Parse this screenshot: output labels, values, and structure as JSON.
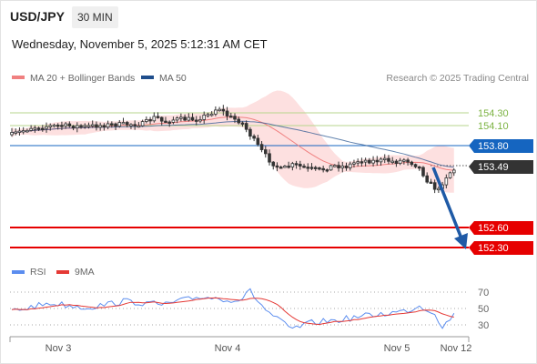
{
  "header": {
    "symbol": "USD/JPY",
    "timeframe": "30 MIN"
  },
  "datetime": "Wednesday, November 5, 2025 5:12:31 AM CET",
  "legend": {
    "ma20": {
      "label": "MA 20 + Bollinger Bands",
      "color": "#f08080"
    },
    "ma50": {
      "label": "MA 50",
      "color": "#1f4e8c"
    }
  },
  "credit": "Research © 2025 Trading Central",
  "price_levels": [
    {
      "label": "154.30",
      "kind": "resistance-green",
      "color": "#7cb342"
    },
    {
      "label": "154.10",
      "kind": "resistance-green",
      "color": "#7cb342"
    },
    {
      "label": "153.80",
      "kind": "pivot",
      "color": "#1565c0"
    },
    {
      "label": "153.49",
      "kind": "current",
      "color": "#333333"
    },
    {
      "label": "152.60",
      "kind": "target",
      "color": "#e60000"
    },
    {
      "label": "152.30",
      "kind": "target",
      "color": "#e60000"
    }
  ],
  "rsi_panel": {
    "legend_rsi": "RSI",
    "legend_9ma": "9MA",
    "rsi_color": "#5b8def",
    "ma_color": "#e53935",
    "levels": [
      "70",
      "50",
      "30"
    ]
  },
  "x_axis": {
    "labels": [
      "Nov 3",
      "Nov 4",
      "Nov 5",
      "Nov 12"
    ]
  },
  "colors": {
    "bull": "#ffffff",
    "bear": "#333333",
    "band": "#fde0e0",
    "arrow": "#1f5aa6"
  }
}
